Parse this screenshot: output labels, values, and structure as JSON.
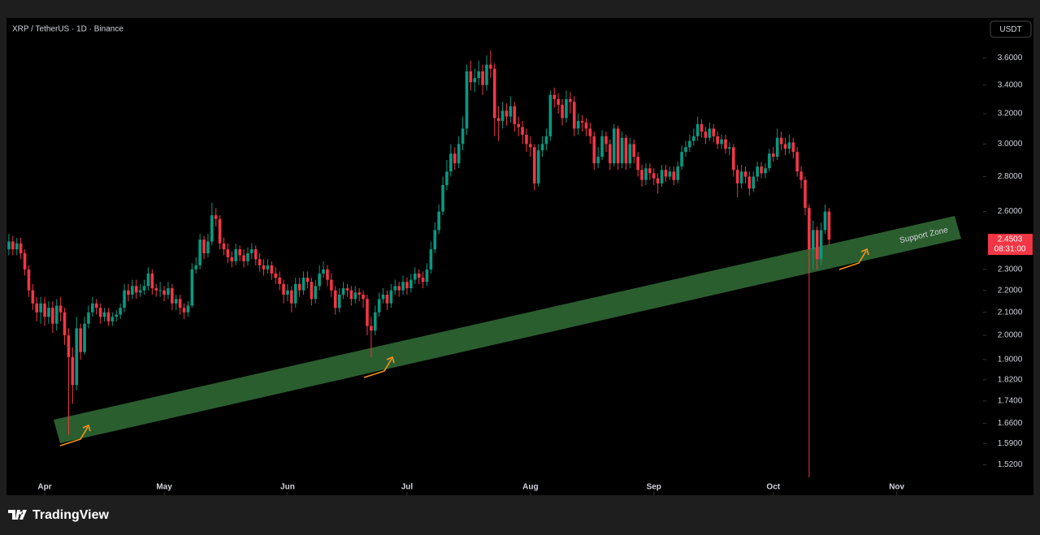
{
  "header": {
    "symbol": "XRP / TetherUS · 1D · Binance",
    "currency": "USDT"
  },
  "chart_data": {
    "type": "candlestick",
    "log_scale": true,
    "up_color": "#089981",
    "down_color": "#f23645",
    "annotation": "Support Zone",
    "countdown": "08:31:00",
    "open": [
      2.4,
      2.44,
      2.4,
      2.43,
      2.38,
      2.3,
      2.2,
      2.14,
      2.1,
      2.14,
      2.08,
      2.12,
      2.05,
      2.13,
      2.1,
      2.0,
      1.91,
      1.8,
      2.03,
      1.93,
      2.05,
      2.1,
      2.14,
      2.12,
      2.08,
      2.1,
      2.06,
      2.08,
      2.09,
      2.12,
      2.2,
      2.18,
      2.22,
      2.19,
      2.2,
      2.22,
      2.28,
      2.21,
      2.2,
      2.2,
      2.18,
      2.21,
      2.14,
      2.16,
      2.12,
      2.1,
      2.13,
      2.3,
      2.32,
      2.45,
      2.38,
      2.44,
      2.58,
      2.56,
      2.43,
      2.4,
      2.36,
      2.34,
      2.4,
      2.37,
      2.34,
      2.38,
      2.4,
      2.35,
      2.32,
      2.3,
      2.32,
      2.28,
      2.26,
      2.23,
      2.18,
      2.2,
      2.14,
      2.23,
      2.2,
      2.26,
      2.24,
      2.16,
      2.22,
      2.28,
      2.3,
      2.25,
      2.2,
      2.12,
      2.18,
      2.21,
      2.2,
      2.16,
      2.19,
      2.18,
      2.16,
      2.04,
      2.02,
      2.1,
      2.16,
      2.18,
      2.14,
      2.2,
      2.22,
      2.2,
      2.24,
      2.21,
      2.25,
      2.28,
      2.26,
      2.24,
      2.3,
      2.4,
      2.5,
      2.6,
      2.75,
      2.83,
      2.94,
      2.88,
      3.0,
      3.1,
      3.5,
      3.42,
      3.45,
      3.5,
      3.4,
      3.55,
      3.52,
      3.17,
      3.15,
      3.22,
      3.18,
      3.25,
      3.13,
      3.11,
      3.06,
      3.0,
      2.98,
      2.76,
      2.96,
      3.0,
      3.05,
      3.33,
      3.3,
      3.26,
      3.17,
      3.3,
      3.28,
      3.1,
      3.15,
      3.14,
      3.1,
      3.05,
      2.88,
      2.92,
      3.05,
      3.0,
      2.88,
      3.1,
      2.88,
      3.04,
      2.88,
      3.0,
      2.92,
      2.84,
      2.78,
      2.85,
      2.82,
      2.79,
      2.76,
      2.84,
      2.8,
      2.83,
      2.78,
      2.86,
      2.95,
      2.98,
      3.02,
      3.05,
      3.13,
      3.08,
      3.04,
      3.1,
      3.05,
      3.0,
      3.03,
      2.97,
      2.98,
      2.84,
      2.76,
      2.83,
      2.8,
      2.73,
      2.8,
      2.86,
      2.82,
      2.85,
      2.94,
      2.92,
      3.04,
      3.0,
      2.97,
      3.01,
      2.95,
      2.83,
      2.78,
      2.62,
      2.4,
      2.5,
      2.35,
      2.5,
      2.6
    ],
    "high": [
      2.48,
      2.47,
      2.46,
      2.46,
      2.4,
      2.32,
      2.23,
      2.17,
      2.17,
      2.17,
      2.15,
      2.15,
      2.16,
      2.17,
      2.12,
      2.03,
      1.95,
      2.08,
      2.05,
      2.08,
      2.13,
      2.17,
      2.16,
      2.14,
      2.12,
      2.12,
      2.1,
      2.11,
      2.14,
      2.23,
      2.23,
      2.25,
      2.25,
      2.23,
      2.25,
      2.31,
      2.3,
      2.23,
      2.24,
      2.22,
      2.24,
      2.23,
      2.18,
      2.18,
      2.14,
      2.15,
      2.33,
      2.36,
      2.48,
      2.47,
      2.48,
      2.65,
      2.62,
      2.58,
      2.46,
      2.43,
      2.39,
      2.43,
      2.42,
      2.4,
      2.41,
      2.43,
      2.42,
      2.38,
      2.35,
      2.35,
      2.34,
      2.31,
      2.29,
      2.25,
      2.23,
      2.22,
      2.26,
      2.26,
      2.29,
      2.29,
      2.26,
      2.25,
      2.32,
      2.34,
      2.32,
      2.28,
      2.22,
      2.21,
      2.24,
      2.23,
      2.22,
      2.22,
      2.21,
      2.2,
      2.18,
      2.08,
      2.13,
      2.19,
      2.21,
      2.2,
      2.23,
      2.25,
      2.24,
      2.27,
      2.26,
      2.28,
      2.31,
      2.3,
      2.29,
      2.33,
      2.44,
      2.54,
      2.64,
      2.8,
      2.9,
      3.0,
      2.98,
      3.05,
      3.18,
      3.55,
      3.58,
      3.52,
      3.58,
      3.55,
      3.62,
      3.66,
      3.56,
      3.25,
      3.28,
      3.27,
      3.32,
      3.28,
      3.18,
      3.15,
      3.1,
      3.05,
      3.0,
      3.0,
      3.05,
      3.1,
      3.36,
      3.38,
      3.34,
      3.3,
      3.36,
      3.35,
      3.32,
      3.2,
      3.19,
      3.17,
      3.14,
      3.08,
      2.98,
      3.09,
      3.08,
      3.03,
      3.13,
      3.12,
      3.08,
      3.06,
      3.04,
      3.03,
      2.95,
      2.87,
      2.88,
      2.88,
      2.85,
      2.82,
      2.87,
      2.87,
      2.86,
      2.86,
      2.89,
      2.99,
      3.02,
      3.06,
      3.1,
      3.18,
      3.16,
      3.11,
      3.14,
      3.13,
      3.08,
      3.06,
      3.06,
      3.01,
      3.0,
      2.87,
      2.87,
      2.86,
      2.83,
      2.83,
      2.89,
      2.89,
      2.88,
      2.97,
      2.98,
      3.1,
      3.08,
      3.04,
      3.06,
      3.04,
      2.98,
      2.86,
      2.8,
      2.64,
      2.55,
      2.52,
      2.54,
      2.64,
      2.62
    ],
    "low": [
      2.37,
      2.37,
      2.37,
      2.35,
      2.27,
      2.17,
      2.11,
      2.06,
      2.05,
      2.04,
      2.05,
      2.01,
      2.02,
      2.06,
      1.96,
      1.62,
      1.73,
      1.78,
      1.9,
      1.92,
      2.03,
      2.08,
      2.09,
      2.05,
      2.06,
      2.04,
      2.04,
      2.06,
      2.07,
      2.1,
      2.15,
      2.16,
      2.16,
      2.17,
      2.18,
      2.2,
      2.18,
      2.17,
      2.17,
      2.15,
      2.16,
      2.11,
      2.11,
      2.09,
      2.07,
      2.08,
      2.12,
      2.28,
      2.3,
      2.35,
      2.36,
      2.42,
      2.52,
      2.4,
      2.37,
      2.33,
      2.31,
      2.32,
      2.34,
      2.31,
      2.32,
      2.35,
      2.32,
      2.29,
      2.27,
      2.28,
      2.25,
      2.23,
      2.2,
      2.14,
      2.15,
      2.1,
      2.12,
      2.17,
      2.18,
      2.21,
      2.13,
      2.14,
      2.2,
      2.26,
      2.22,
      2.17,
      2.09,
      2.1,
      2.16,
      2.17,
      2.13,
      2.14,
      2.15,
      2.12,
      2.0,
      1.91,
      2.0,
      2.08,
      2.14,
      2.11,
      2.12,
      2.18,
      2.17,
      2.18,
      2.18,
      2.19,
      2.23,
      2.23,
      2.21,
      2.22,
      2.28,
      2.38,
      2.48,
      2.58,
      2.72,
      2.8,
      2.84,
      2.85,
      2.96,
      3.06,
      3.36,
      3.35,
      3.4,
      3.33,
      3.36,
      3.45,
      3.05,
      3.02,
      3.1,
      3.12,
      3.14,
      3.08,
      3.05,
      3.0,
      2.95,
      2.92,
      2.72,
      2.74,
      2.92,
      2.96,
      3.02,
      3.24,
      3.2,
      3.12,
      3.14,
      3.2,
      3.05,
      3.06,
      3.08,
      3.05,
      3.0,
      2.84,
      2.85,
      2.9,
      2.95,
      2.84,
      2.86,
      2.84,
      2.85,
      2.84,
      2.85,
      2.88,
      2.8,
      2.74,
      2.75,
      2.78,
      2.75,
      2.7,
      2.74,
      2.77,
      2.78,
      2.75,
      2.76,
      2.84,
      2.92,
      2.95,
      2.99,
      3.02,
      3.04,
      3.0,
      3.02,
      3.01,
      2.97,
      2.97,
      2.94,
      2.93,
      2.8,
      2.68,
      2.73,
      2.76,
      2.69,
      2.71,
      2.77,
      2.79,
      2.79,
      2.83,
      2.89,
      2.9,
      2.96,
      2.93,
      2.94,
      2.91,
      2.8,
      2.73,
      2.58,
      1.48,
      2.3,
      2.3,
      2.32,
      2.48,
      2.42
    ],
    "close": [
      2.44,
      2.4,
      2.43,
      2.38,
      2.3,
      2.2,
      2.14,
      2.1,
      2.14,
      2.08,
      2.12,
      2.05,
      2.13,
      2.1,
      2.0,
      1.91,
      1.8,
      2.03,
      1.93,
      2.05,
      2.1,
      2.14,
      2.12,
      2.08,
      2.1,
      2.06,
      2.08,
      2.09,
      2.12,
      2.2,
      2.18,
      2.22,
      2.19,
      2.2,
      2.22,
      2.28,
      2.21,
      2.2,
      2.2,
      2.18,
      2.21,
      2.14,
      2.16,
      2.12,
      2.1,
      2.13,
      2.3,
      2.32,
      2.45,
      2.38,
      2.44,
      2.58,
      2.56,
      2.43,
      2.4,
      2.36,
      2.34,
      2.4,
      2.37,
      2.34,
      2.38,
      2.4,
      2.35,
      2.32,
      2.3,
      2.32,
      2.28,
      2.26,
      2.23,
      2.18,
      2.2,
      2.14,
      2.23,
      2.2,
      2.26,
      2.24,
      2.16,
      2.22,
      2.28,
      2.3,
      2.25,
      2.2,
      2.12,
      2.18,
      2.21,
      2.2,
      2.16,
      2.19,
      2.18,
      2.16,
      2.04,
      2.02,
      2.1,
      2.16,
      2.18,
      2.14,
      2.2,
      2.22,
      2.2,
      2.24,
      2.21,
      2.25,
      2.28,
      2.26,
      2.24,
      2.3,
      2.4,
      2.5,
      2.6,
      2.75,
      2.83,
      2.94,
      2.88,
      3.0,
      3.1,
      3.5,
      3.42,
      3.45,
      3.5,
      3.4,
      3.55,
      3.52,
      3.17,
      3.15,
      3.22,
      3.18,
      3.25,
      3.13,
      3.11,
      3.06,
      3.0,
      2.98,
      2.76,
      2.96,
      3.0,
      3.05,
      3.33,
      3.3,
      3.26,
      3.17,
      3.3,
      3.28,
      3.1,
      3.15,
      3.14,
      3.1,
      3.05,
      2.88,
      2.92,
      3.05,
      3.0,
      2.88,
      3.1,
      2.88,
      3.04,
      2.88,
      3.0,
      2.92,
      2.84,
      2.78,
      2.85,
      2.82,
      2.79,
      2.76,
      2.84,
      2.8,
      2.83,
      2.78,
      2.86,
      2.95,
      2.98,
      3.02,
      3.05,
      3.13,
      3.08,
      3.04,
      3.1,
      3.05,
      3.0,
      3.03,
      2.97,
      2.98,
      2.84,
      2.76,
      2.83,
      2.8,
      2.73,
      2.8,
      2.86,
      2.82,
      2.85,
      2.94,
      2.92,
      3.04,
      3.0,
      2.97,
      3.01,
      2.95,
      2.83,
      2.78,
      2.62,
      2.4,
      2.5,
      2.35,
      2.5,
      2.6,
      2.4503
    ],
    "xlim": [
      -0.6,
      244.7
    ],
    "xticks": [
      {
        "value": 9,
        "label": "Apr"
      },
      {
        "value": 39,
        "label": "May"
      },
      {
        "value": 70,
        "label": "Jun"
      },
      {
        "value": 100,
        "label": "Jul"
      },
      {
        "value": 131,
        "label": "Aug"
      },
      {
        "value": 162,
        "label": "Sep"
      },
      {
        "value": 192,
        "label": "Oct"
      },
      {
        "value": 223,
        "label": "Nov"
      }
    ],
    "ylim": [
      1.43,
      3.92
    ],
    "yticks": [
      {
        "value": 1.52,
        "label": "1.5200"
      },
      {
        "value": 1.59,
        "label": "1.5900"
      },
      {
        "value": 1.66,
        "label": "1.6600"
      },
      {
        "value": 1.74,
        "label": "1.7400"
      },
      {
        "value": 1.82,
        "label": "1.8200"
      },
      {
        "value": 1.9,
        "label": "1.9000"
      },
      {
        "value": 2,
        "label": "2.0000"
      },
      {
        "value": 2.1,
        "label": "2.1000"
      },
      {
        "value": 2.2,
        "label": "2.2000"
      },
      {
        "value": 2.3,
        "label": "2.3000"
      },
      {
        "value": 2.6,
        "label": "2.6000"
      },
      {
        "value": 2.8,
        "label": "2.8000"
      },
      {
        "value": 3,
        "label": "3.0000"
      },
      {
        "value": 3.2,
        "label": "3.2000"
      },
      {
        "value": 3.4,
        "label": "3.4000"
      },
      {
        "value": 3.6,
        "label": "3.6000"
      }
    ]
  },
  "footer": {
    "brand": "TradingView"
  }
}
